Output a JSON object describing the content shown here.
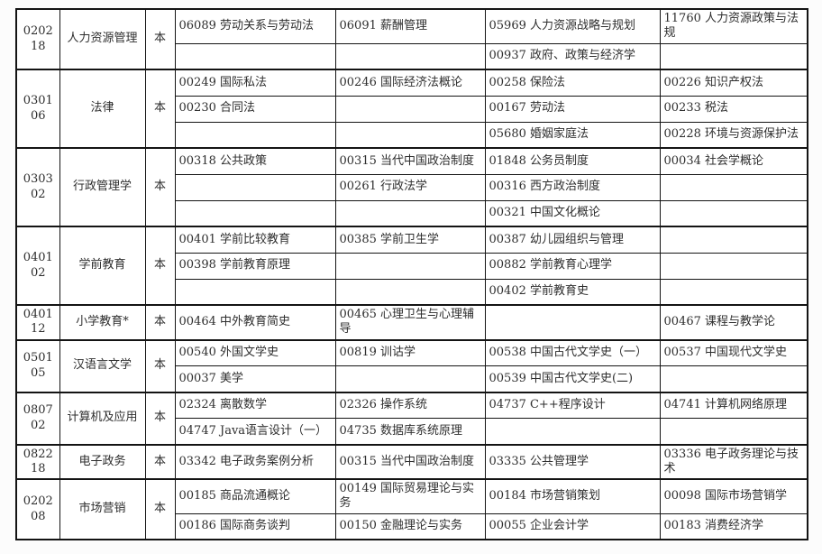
{
  "table": {
    "columns": [
      "major_code",
      "major_name",
      "level",
      "course_slot_1",
      "course_slot_2",
      "course_slot_3",
      "course_slot_4"
    ],
    "groups": [
      {
        "code": "020218",
        "major": "人力资源管理",
        "level": "本",
        "rows": [
          [
            "06089 劳动关系与劳动法",
            "06091 薪酬管理",
            "05969 人力资源战略与规划",
            "11760 人力资源政策与法规"
          ],
          [
            "",
            "",
            "00937 政府、政策与经济学",
            ""
          ]
        ]
      },
      {
        "code": "030106",
        "major": "法律",
        "level": "本",
        "rows": [
          [
            "00249 国际私法",
            "00246 国际经济法概论",
            "00258 保险法",
            "00226 知识产权法"
          ],
          [
            "00230 合同法",
            "",
            "00167 劳动法",
            "00233 税法"
          ],
          [
            "",
            "",
            "05680 婚姻家庭法",
            "00228 环境与资源保护法"
          ]
        ]
      },
      {
        "code": "030302",
        "major": "行政管理学",
        "level": "本",
        "rows": [
          [
            "00318 公共政策",
            "00315 当代中国政治制度",
            "01848 公务员制度",
            "00034 社会学概论"
          ],
          [
            "",
            "00261 行政法学",
            "00316 西方政治制度",
            ""
          ],
          [
            "",
            "",
            "00321 中国文化概论",
            ""
          ]
        ]
      },
      {
        "code": "040102",
        "major": "学前教育",
        "level": "本",
        "rows": [
          [
            "00401 学前比较教育",
            "00385 学前卫生学",
            "00387 幼儿园组织与管理",
            ""
          ],
          [
            "00398 学前教育原理",
            "",
            "00882 学前教育心理学",
            ""
          ],
          [
            "",
            "",
            "00402 学前教育史",
            ""
          ]
        ]
      },
      {
        "code": "040112",
        "major": "小学教育*",
        "level": "本",
        "rows": [
          [
            "00464 中外教育简史",
            "00465 心理卫生与心理辅导",
            "",
            "00467 课程与教学论"
          ]
        ]
      },
      {
        "code": "050105",
        "major": "汉语言文学",
        "level": "本",
        "rows": [
          [
            "00540 外国文学史",
            "00819 训诂学",
            "00538 中国古代文学史（一）",
            "00537 中国现代文学史"
          ],
          [
            "00037 美学",
            "",
            "00539 中国古代文学史(二)",
            ""
          ]
        ]
      },
      {
        "code": "080702",
        "major": "计算机及应用",
        "level": "本",
        "rows": [
          [
            "02324 离散数学",
            "02326 操作系统",
            "04737 C++程序设计",
            "04741 计算机网络原理"
          ],
          [
            "04747 Java语言设计（一）",
            "04735 数据库系统原理",
            "",
            ""
          ]
        ]
      },
      {
        "code": "082218",
        "major": "电子政务",
        "level": "本",
        "rows": [
          [
            "03342 电子政务案例分析",
            "00315 当代中国政治制度",
            "03335 公共管理学",
            "03336 电子政务理论与技术"
          ]
        ]
      },
      {
        "code": "020208",
        "major": "市场营销",
        "level": "本",
        "rows": [
          [
            "00185 商品流通概论",
            "00149 国际贸易理论与实务",
            "00184 市场营销策划",
            "00098 国际市场营销学"
          ],
          [
            "00186 国际商务谈判",
            "00150 金融理论与实务",
            "00055 企业会计学",
            "00183 消费经济学"
          ]
        ]
      }
    ],
    "colors": {
      "border": "#141414",
      "text": "#2e2e2e",
      "background": "#ffffff"
    }
  }
}
